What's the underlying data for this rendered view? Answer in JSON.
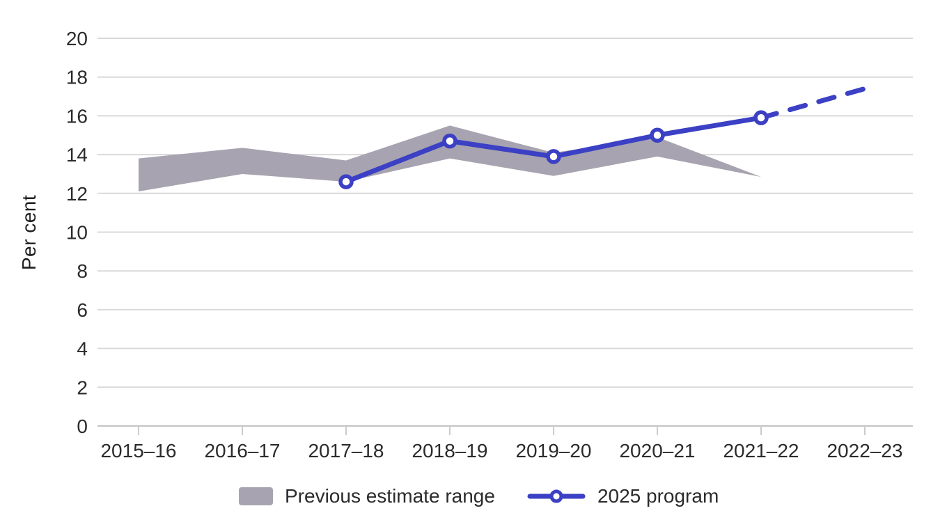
{
  "chart_data": {
    "type": "line",
    "title": "",
    "ylabel": "Per cent",
    "xlabel": "",
    "ylim": [
      0,
      20
    ],
    "yticks": [
      0,
      2,
      4,
      6,
      8,
      10,
      12,
      14,
      16,
      18,
      20
    ],
    "grid": true,
    "legend_position": "bottom",
    "categories": [
      "2015–16",
      "2016–17",
      "2017–18",
      "2018–19",
      "2019–20",
      "2020–21",
      "2021–22",
      "2022–23"
    ],
    "series": [
      {
        "name": "Previous estimate range",
        "type": "band",
        "color": "#a7a3b0",
        "lower": [
          12.1,
          13.0,
          12.6,
          13.8,
          12.9,
          13.9,
          12.85,
          null
        ],
        "upper": [
          13.8,
          14.35,
          13.7,
          15.5,
          14.1,
          14.9,
          12.85,
          null
        ]
      },
      {
        "name": "2025 program",
        "type": "line",
        "color": "#3b40c4",
        "values": [
          null,
          null,
          12.6,
          14.7,
          13.9,
          15.0,
          15.9,
          17.4
        ],
        "dashed_from_index": 6,
        "marker": "circle"
      }
    ],
    "colors": {
      "gridline": "#d9d9d9",
      "axis": "#c3c3c3",
      "text": "#2b2b2b"
    }
  }
}
